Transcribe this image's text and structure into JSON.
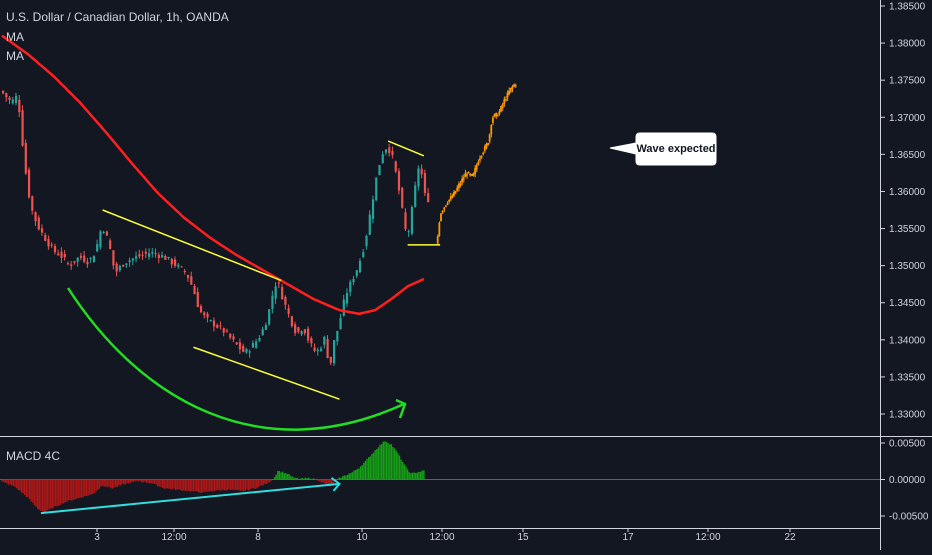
{
  "header": {
    "title": "U.S. Dollar / Canadian Dollar, 1h, OANDA",
    "indicators": [
      "MA",
      "MA"
    ]
  },
  "callout": {
    "text": "Wave expected"
  },
  "colors": {
    "background": "#131722",
    "bull": "#26a69a",
    "bear": "#ef5350",
    "ma": "#ff1f1f",
    "channel": "#ffff33",
    "arc": "#22dd22",
    "projection": "#ff9900",
    "macd_pos": "#16a016",
    "macd_neg": "#b01818",
    "divergence": "#33dddd"
  },
  "chart_data": [
    {
      "type": "candlestick",
      "title": "U.S. Dollar / Canadian Dollar, 1h, OANDA",
      "y_ticks": [
        "1.38500",
        "1.38000",
        "1.37500",
        "1.37000",
        "1.36500",
        "1.36000",
        "1.35500",
        "1.35000",
        "1.34500",
        "1.34000",
        "1.33500",
        "1.33000"
      ],
      "ylim": [
        1.3275,
        1.386
      ],
      "x_ticks": [
        "3",
        "12:00",
        "8",
        "10",
        "12:00",
        "15",
        "17",
        "12:00",
        "22"
      ],
      "price_path": [
        [
          0,
          1.3735
        ],
        [
          3,
          1.372
        ],
        [
          5,
          1.373
        ],
        [
          6,
          1.369
        ],
        [
          7,
          1.364
        ],
        [
          9,
          1.358
        ],
        [
          11,
          1.3555
        ],
        [
          13,
          1.354
        ],
        [
          16,
          1.352
        ],
        [
          18,
          1.3515
        ],
        [
          21,
          1.35
        ],
        [
          24,
          1.3512
        ],
        [
          27,
          1.3505
        ],
        [
          29,
          1.352
        ],
        [
          31,
          1.3555
        ],
        [
          33,
          1.3532
        ],
        [
          35,
          1.349
        ],
        [
          38,
          1.3505
        ],
        [
          42,
          1.3512
        ],
        [
          46,
          1.3518
        ],
        [
          50,
          1.3512
        ],
        [
          54,
          1.35
        ],
        [
          57,
          1.349
        ],
        [
          59,
          1.347
        ],
        [
          61,
          1.344
        ],
        [
          63,
          1.3428
        ],
        [
          66,
          1.342
        ],
        [
          69,
          1.341
        ],
        [
          72,
          1.3395
        ],
        [
          75,
          1.3382
        ],
        [
          78,
          1.3395
        ],
        [
          80,
          1.3408
        ],
        [
          82,
          1.343
        ],
        [
          84,
          1.347
        ],
        [
          85,
          1.348
        ],
        [
          87,
          1.3452
        ],
        [
          89,
          1.3428
        ],
        [
          91,
          1.3408
        ],
        [
          93,
          1.3418
        ],
        [
          95,
          1.3395
        ],
        [
          97,
          1.3382
        ],
        [
          99,
          1.3395
        ],
        [
          100,
          1.3408
        ],
        [
          101,
          1.335
        ],
        [
          102,
          1.339
        ],
        [
          104,
          1.342
        ],
        [
          106,
          1.346
        ],
        [
          108,
          1.348
        ],
        [
          110,
          1.35
        ],
        [
          112,
          1.353
        ],
        [
          114,
          1.358
        ],
        [
          116,
          1.363
        ],
        [
          118,
          1.366
        ],
        [
          120,
          1.3655
        ],
        [
          122,
          1.3615
        ],
        [
          124,
          1.356
        ],
        [
          125,
          1.3535
        ],
        [
          126,
          1.356
        ],
        [
          128,
          1.362
        ],
        [
          129,
          1.3645
        ],
        [
          130,
          1.36
        ],
        [
          131,
          1.359
        ]
      ],
      "projection_path": [
        [
          134,
          1.353
        ],
        [
          135,
          1.357
        ],
        [
          137,
          1.3585
        ],
        [
          139,
          1.3595
        ],
        [
          141,
          1.361
        ],
        [
          143,
          1.3625
        ],
        [
          145,
          1.362
        ],
        [
          147,
          1.3645
        ],
        [
          149,
          1.366
        ],
        [
          150,
          1.367
        ],
        [
          151,
          1.37
        ],
        [
          153,
          1.3705
        ],
        [
          155,
          1.3725
        ],
        [
          157,
          1.374
        ],
        [
          158,
          1.3745
        ]
      ],
      "ma_path": [
        [
          0,
          1.381
        ],
        [
          8,
          1.3785
        ],
        [
          16,
          1.3755
        ],
        [
          24,
          1.372
        ],
        [
          32,
          1.368
        ],
        [
          40,
          1.3638
        ],
        [
          48,
          1.3598
        ],
        [
          56,
          1.3565
        ],
        [
          64,
          1.3538
        ],
        [
          72,
          1.3515
        ],
        [
          80,
          1.3495
        ],
        [
          88,
          1.3475
        ],
        [
          96,
          1.3455
        ],
        [
          104,
          1.344
        ],
        [
          110,
          1.3435
        ],
        [
          115,
          1.344
        ],
        [
          120,
          1.3455
        ],
        [
          125,
          1.3472
        ],
        [
          130,
          1.3482
        ]
      ],
      "channel_lines": [
        {
          "from": [
            31,
            1.3575
          ],
          "to": [
            86,
            1.348
          ]
        },
        {
          "from": [
            59,
            1.339
          ],
          "to": [
            104,
            1.332
          ]
        },
        {
          "from": [
            119,
            1.3668
          ],
          "to": [
            130,
            1.3648
          ]
        },
        {
          "from": [
            125,
            1.3528
          ],
          "to": [
            135,
            1.3528
          ]
        }
      ]
    },
    {
      "type": "bar",
      "title": "MACD 4C",
      "y_ticks": [
        "0.00500",
        "0.00000",
        "-0.00500"
      ],
      "ylim": [
        -0.0056,
        0.0058
      ],
      "histogram_path": [
        [
          0,
          -0.0003
        ],
        [
          4,
          -0.001
        ],
        [
          8,
          -0.0025
        ],
        [
          11,
          -0.004
        ],
        [
          13,
          -0.0045
        ],
        [
          16,
          -0.0038
        ],
        [
          20,
          -0.003
        ],
        [
          24,
          -0.0025
        ],
        [
          28,
          -0.002
        ],
        [
          31,
          -0.0008
        ],
        [
          34,
          -0.0012
        ],
        [
          38,
          -0.0006
        ],
        [
          42,
          -0.0002
        ],
        [
          46,
          -0.0005
        ],
        [
          50,
          -0.0012
        ],
        [
          54,
          -0.0014
        ],
        [
          58,
          -0.0016
        ],
        [
          62,
          -0.0018
        ],
        [
          66,
          -0.0015
        ],
        [
          70,
          -0.0014
        ],
        [
          74,
          -0.0016
        ],
        [
          78,
          -0.0012
        ],
        [
          82,
          -0.0005
        ],
        [
          84,
          0.0003
        ],
        [
          85,
          0.0012
        ],
        [
          88,
          0.0008
        ],
        [
          90,
          0.0002
        ],
        [
          92,
          0.0001
        ],
        [
          95,
          0.0002
        ],
        [
          98,
          -0.0002
        ],
        [
          101,
          -0.001
        ],
        [
          102,
          -0.0005
        ],
        [
          104,
          0.0002
        ],
        [
          106,
          0.0006
        ],
        [
          108,
          0.001
        ],
        [
          110,
          0.0016
        ],
        [
          112,
          0.0025
        ],
        [
          114,
          0.0035
        ],
        [
          116,
          0.0045
        ],
        [
          118,
          0.0053
        ],
        [
          120,
          0.0048
        ],
        [
          122,
          0.0036
        ],
        [
          124,
          0.002
        ],
        [
          126,
          0.0008
        ],
        [
          128,
          0.001
        ],
        [
          130,
          0.0012
        ]
      ],
      "divergence_line": {
        "from": [
          12,
          -0.0046
        ],
        "to": [
          104,
          -0.0006
        ]
      }
    }
  ]
}
